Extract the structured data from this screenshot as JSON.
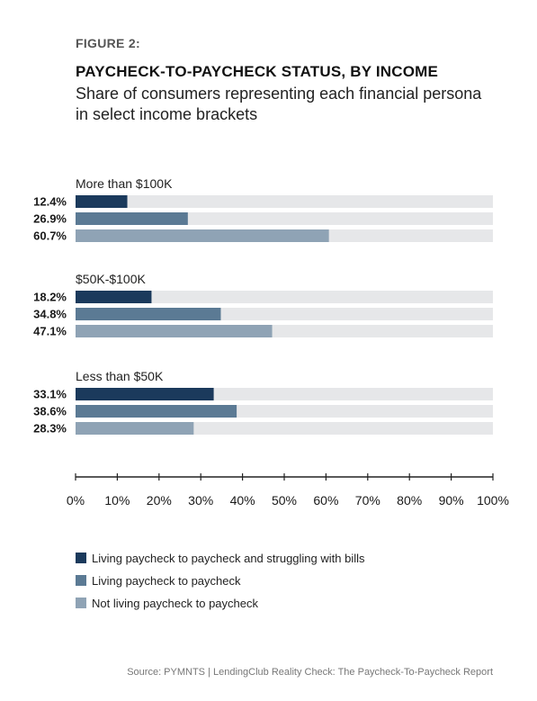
{
  "figure_label": "FIGURE 2:",
  "title": "PAYCHECK-TO-PAYCHECK STATUS, BY INCOME",
  "subtitle": "Share of consumers representing each financial persona in select income brackets",
  "source": "Source: PYMNTS | LendingClub    Reality Check: The Paycheck-To-Paycheck Report",
  "chart_data": {
    "type": "bar",
    "orientation": "horizontal",
    "groups": [
      {
        "label": "More than $100K",
        "values": [
          12.4,
          26.9,
          60.7
        ],
        "value_labels": [
          "12.4%",
          "26.9%",
          "60.7%"
        ]
      },
      {
        "label": "$50K-$100K",
        "values": [
          18.2,
          34.8,
          47.1
        ],
        "value_labels": [
          "18.2%",
          "34.8%",
          "47.1%"
        ]
      },
      {
        "label": "Less than $50K",
        "values": [
          33.1,
          38.6,
          28.3
        ],
        "value_labels": [
          "33.1%",
          "38.6%",
          "28.3%"
        ]
      }
    ],
    "series": [
      {
        "name": "Living paycheck to paycheck and struggling with bills",
        "color": "#1b3a5c"
      },
      {
        "name": "Living paycheck to paycheck",
        "color": "#5b7a94"
      },
      {
        "name": "Not living paycheck to paycheck",
        "color": "#8fa3b5"
      }
    ],
    "xlim": [
      0,
      100
    ],
    "x_ticks": [
      "0%",
      "10%",
      "20%",
      "30%",
      "40%",
      "50%",
      "60%",
      "70%",
      "80%",
      "90%",
      "100%"
    ],
    "track_color": "#e6e7e9",
    "legend_position": "bottom-left"
  }
}
